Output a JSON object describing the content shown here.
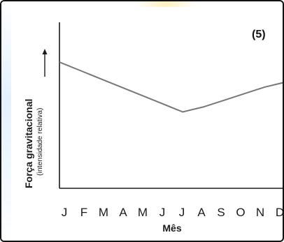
{
  "chart_data": {
    "type": "line",
    "panel_label": "(5)",
    "xlabel": "Mês",
    "ylabel": "Força gravitacional",
    "ylabel_sub": "(intensidade relativa)",
    "categories": [
      "J",
      "F",
      "M",
      "A",
      "M",
      "J",
      "J",
      "A",
      "S",
      "O",
      "N",
      "D"
    ],
    "series": [
      {
        "values": [
          0.76,
          0.71,
          0.66,
          0.61,
          0.56,
          0.51,
          0.46,
          0.49,
          0.53,
          0.57,
          0.61,
          0.64
        ]
      }
    ],
    "ylim": [
      0,
      1
    ],
    "grid": false,
    "colors": {
      "line": "#777777",
      "axis": "#1a1a1a"
    }
  }
}
